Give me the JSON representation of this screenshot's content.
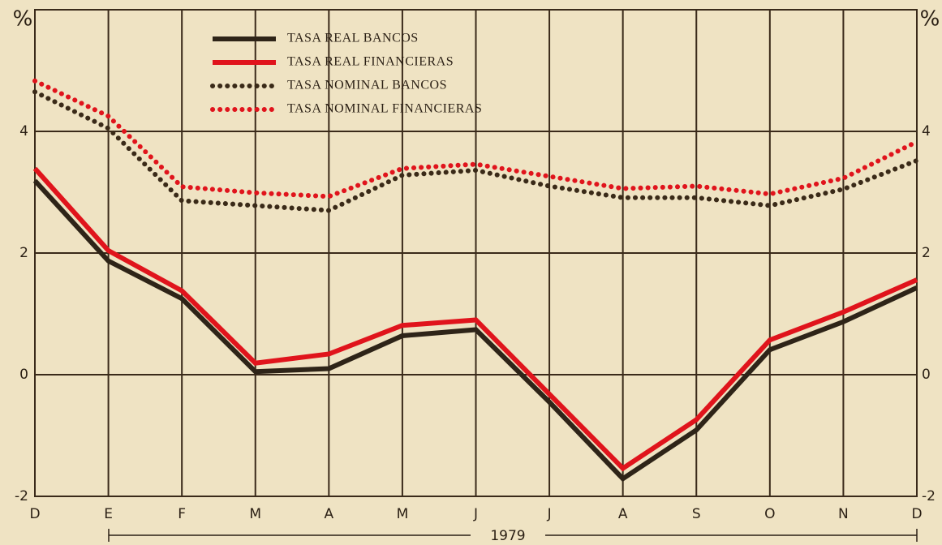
{
  "chart_data": {
    "type": "line",
    "y_unit_label": "%",
    "x_label": "1979",
    "categories": [
      "D",
      "E",
      "F",
      "M",
      "A",
      "M",
      "J",
      "J",
      "A",
      "S",
      "O",
      "N",
      "D"
    ],
    "series": [
      {
        "name": "TASA REAL BANCOS",
        "color": "#2e2418",
        "style": "solid",
        "values": [
          3.19,
          1.87,
          1.25,
          0.05,
          0.1,
          0.64,
          0.74,
          -0.45,
          -1.71,
          -0.91,
          0.41,
          0.87,
          1.43
        ]
      },
      {
        "name": "TASA REAL FINANCIERAS",
        "color": "#e0141c",
        "style": "solid",
        "values": [
          3.39,
          2.04,
          1.38,
          0.19,
          0.34,
          0.81,
          0.9,
          -0.32,
          -1.54,
          -0.74,
          0.57,
          1.03,
          1.56
        ]
      },
      {
        "name": "TASA NOMINAL BANCOS",
        "color": "#3a2a18",
        "style": "dotted",
        "values": [
          4.65,
          4.05,
          2.86,
          2.78,
          2.7,
          3.28,
          3.36,
          3.1,
          2.91,
          2.91,
          2.78,
          3.05,
          3.52
        ]
      },
      {
        "name": "TASA NOMINAL FINANCIERAS",
        "color": "#e0141c",
        "style": "dotted",
        "values": [
          4.83,
          4.25,
          3.09,
          2.99,
          2.93,
          3.39,
          3.46,
          3.26,
          3.06,
          3.1,
          2.97,
          3.23,
          3.83
        ]
      }
    ],
    "ylim": [
      -2,
      6
    ],
    "yticks": [
      -2,
      0,
      2,
      4
    ],
    "grid": true
  }
}
